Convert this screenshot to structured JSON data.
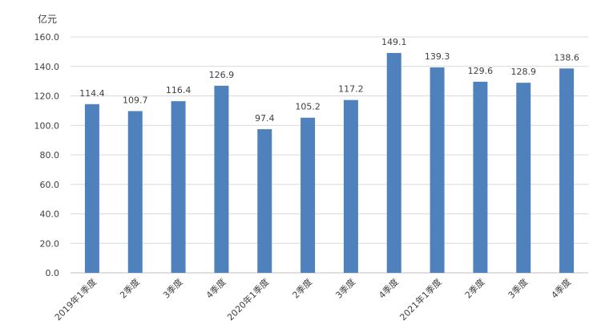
{
  "chart_data": {
    "type": "bar",
    "unit": "亿元",
    "categories": [
      "2019年1季度",
      "2季度",
      "3季度",
      "4季度",
      "2020年1季度",
      "2季度",
      "3季度",
      "4季度",
      "2021年1季度",
      "2季度",
      "3季度",
      "4季度"
    ],
    "values": [
      114.4,
      109.7,
      116.4,
      126.9,
      97.4,
      105.2,
      117.2,
      149.1,
      139.3,
      129.6,
      128.9,
      138.6
    ],
    "value_labels": [
      "114.4",
      "109.7",
      "116.4",
      "126.9",
      "97.4",
      "105.2",
      "117.2",
      "149.1",
      "139.3",
      "129.6",
      "128.9",
      "138.6"
    ],
    "yticks": [
      "0.0",
      "20.0",
      "40.0",
      "60.0",
      "80.0",
      "100.0",
      "120.0",
      "140.0",
      "160.0"
    ],
    "ylim": [
      0,
      160
    ],
    "grid": true,
    "bar_color": "#4f81bd"
  }
}
